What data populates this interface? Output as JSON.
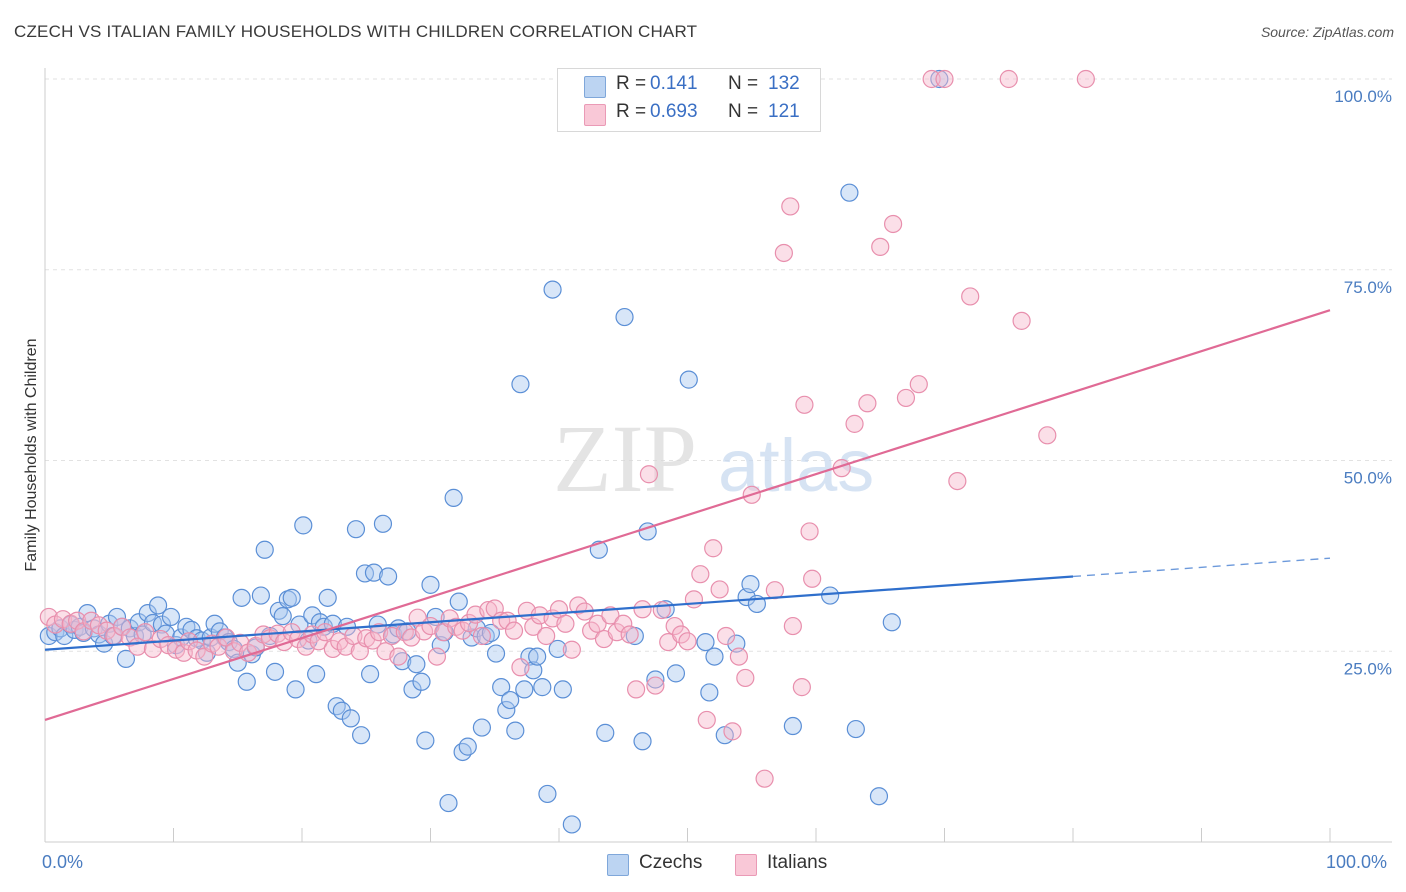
{
  "header": {
    "title": "CZECH VS ITALIAN FAMILY HOUSEHOLDS WITH CHILDREN CORRELATION CHART",
    "source": "Source: ZipAtlas.com"
  },
  "watermark": {
    "zip": "ZIP",
    "atlas": "atlas"
  },
  "legend": {
    "czechs": {
      "r_key": "R =",
      "r": "0.141",
      "n_key": "N =",
      "n": "132",
      "color": "#a9c8ef"
    },
    "italians": {
      "r_key": "R =",
      "r": "0.693",
      "n_key": "N =",
      "n": "121",
      "color": "#f6b8cb"
    }
  },
  "bottom_legend": {
    "czechs": "Czechs",
    "italians": "Italians"
  },
  "chart_data": {
    "type": "scatter",
    "title": "CZECH VS ITALIAN FAMILY HOUSEHOLDS WITH CHILDREN CORRELATION CHART",
    "xlabel": "",
    "ylabel": "Family Households with Children",
    "xlim": [
      0,
      100
    ],
    "ylim": [
      0,
      100
    ],
    "x_tick_labels": [
      "0.0%",
      "100.0%"
    ],
    "y_ticks": [
      25,
      50,
      75,
      100
    ],
    "y_tick_labels": [
      "25.0%",
      "50.0%",
      "75.0%",
      "100.0%"
    ],
    "grid": true,
    "series": [
      {
        "name": "Czechs",
        "color": "#5b8fd6",
        "fill": "#a9c8ef",
        "trend": {
          "x0": 0,
          "y0": 25.2,
          "x1": 80,
          "y1": 34.8,
          "dashed_to_x": 100,
          "dashed_to_y": 37.2,
          "color": "#2f6fcc"
        },
        "points": [
          [
            0.3,
            27
          ],
          [
            0.8,
            27.5
          ],
          [
            1.2,
            28
          ],
          [
            1.5,
            27
          ],
          [
            2,
            28.5
          ],
          [
            2.3,
            27.8
          ],
          [
            2.7,
            28.2
          ],
          [
            3,
            27.4
          ],
          [
            3.3,
            30
          ],
          [
            3.8,
            28
          ],
          [
            4.2,
            27.2
          ],
          [
            4.6,
            26
          ],
          [
            5,
            28.6
          ],
          [
            5.3,
            27
          ],
          [
            5.6,
            29.5
          ],
          [
            6,
            28.2
          ],
          [
            6.3,
            24
          ],
          [
            6.6,
            28
          ],
          [
            7,
            27
          ],
          [
            7.3,
            28.8
          ],
          [
            7.6,
            27.2
          ],
          [
            8,
            30
          ],
          [
            8.4,
            28.7
          ],
          [
            8.8,
            31
          ],
          [
            9.1,
            28.5
          ],
          [
            9.4,
            27.3
          ],
          [
            9.8,
            29.5
          ],
          [
            10.2,
            25.8
          ],
          [
            10.6,
            26.8
          ],
          [
            11,
            28.2
          ],
          [
            11.4,
            27.8
          ],
          [
            11.8,
            26.7
          ],
          [
            12.2,
            26.4
          ],
          [
            12.6,
            24.8
          ],
          [
            12.9,
            26.8
          ],
          [
            13.2,
            28.6
          ],
          [
            13.6,
            27.6
          ],
          [
            14,
            26.8
          ],
          [
            14.3,
            26.2
          ],
          [
            14.7,
            25.3
          ],
          [
            15,
            23.5
          ],
          [
            15.3,
            32
          ],
          [
            15.7,
            21
          ],
          [
            16.1,
            24.6
          ],
          [
            16.4,
            25.5
          ],
          [
            16.8,
            32.3
          ],
          [
            17.1,
            38.3
          ],
          [
            17.5,
            27
          ],
          [
            17.9,
            22.3
          ],
          [
            18.2,
            30.3
          ],
          [
            18.5,
            29.6
          ],
          [
            18.9,
            31.8
          ],
          [
            19.2,
            32
          ],
          [
            19.5,
            20
          ],
          [
            19.8,
            28.5
          ],
          [
            20.1,
            41.5
          ],
          [
            20.5,
            26.4
          ],
          [
            20.8,
            29.7
          ],
          [
            21.1,
            22
          ],
          [
            21.4,
            28.8
          ],
          [
            21.7,
            28.2
          ],
          [
            22,
            32
          ],
          [
            22.4,
            28.6
          ],
          [
            22.7,
            17.8
          ],
          [
            23.1,
            17.2
          ],
          [
            23.5,
            28.2
          ],
          [
            23.8,
            16.2
          ],
          [
            24.2,
            41
          ],
          [
            24.6,
            14
          ],
          [
            24.9,
            35.2
          ],
          [
            25.3,
            22
          ],
          [
            25.6,
            35.3
          ],
          [
            25.9,
            28.5
          ],
          [
            26.3,
            41.7
          ],
          [
            26.7,
            34.8
          ],
          [
            27.1,
            27.2
          ],
          [
            27.5,
            28
          ],
          [
            27.8,
            23.7
          ],
          [
            28.2,
            27.6
          ],
          [
            28.6,
            20
          ],
          [
            28.9,
            23.3
          ],
          [
            29.3,
            21
          ],
          [
            29.6,
            13.3
          ],
          [
            30,
            33.7
          ],
          [
            30.4,
            29.5
          ],
          [
            30.8,
            25.8
          ],
          [
            31.1,
            27.5
          ],
          [
            31.4,
            5.1
          ],
          [
            31.8,
            45.1
          ],
          [
            32.2,
            31.5
          ],
          [
            32.5,
            11.8
          ],
          [
            32.9,
            12.5
          ],
          [
            33.2,
            26.8
          ],
          [
            33.6,
            28
          ],
          [
            34,
            15
          ],
          [
            34.3,
            27
          ],
          [
            34.7,
            27.4
          ],
          [
            35.1,
            24.7
          ],
          [
            35.5,
            20.3
          ],
          [
            35.9,
            17.3
          ],
          [
            36.2,
            18.6
          ],
          [
            36.6,
            14.6
          ],
          [
            37,
            60
          ],
          [
            37.3,
            20
          ],
          [
            37.7,
            24.3
          ],
          [
            38,
            22.5
          ],
          [
            38.3,
            24.3
          ],
          [
            38.7,
            20.3
          ],
          [
            39.1,
            6.3
          ],
          [
            39.5,
            72.4
          ],
          [
            39.9,
            25.3
          ],
          [
            40.3,
            20
          ],
          [
            41,
            2.3
          ],
          [
            43.1,
            38.3
          ],
          [
            43.6,
            14.3
          ],
          [
            45.1,
            68.8
          ],
          [
            45.9,
            27
          ],
          [
            46.5,
            13.2
          ],
          [
            46.9,
            40.7
          ],
          [
            47.5,
            21.3
          ],
          [
            48.3,
            30.5
          ],
          [
            49.1,
            22.1
          ],
          [
            50.1,
            60.6
          ],
          [
            51.4,
            26.2
          ],
          [
            51.7,
            19.6
          ],
          [
            52.1,
            24.3
          ],
          [
            52.9,
            14
          ],
          [
            53.8,
            26
          ],
          [
            54.6,
            32.1
          ],
          [
            54.9,
            33.8
          ],
          [
            55.4,
            31.2
          ],
          [
            58.2,
            15.2
          ],
          [
            61.1,
            32.3
          ],
          [
            62.6,
            85.1
          ],
          [
            63.1,
            14.8
          ],
          [
            64.9,
            6
          ],
          [
            65.9,
            28.8
          ],
          [
            69.6,
            100
          ]
        ]
      },
      {
        "name": "Italians",
        "color": "#e88fad",
        "fill": "#f6b8cb",
        "trend": {
          "x0": 0,
          "y0": 16,
          "x1": 100,
          "y1": 69.7,
          "color": "#e06a95"
        },
        "points": [
          [
            0.3,
            29.5
          ],
          [
            0.8,
            28.5
          ],
          [
            1.4,
            29.2
          ],
          [
            2,
            28.6
          ],
          [
            2.5,
            29
          ],
          [
            3,
            27.6
          ],
          [
            3.6,
            29
          ],
          [
            4.2,
            28.4
          ],
          [
            4.8,
            27.7
          ],
          [
            5.4,
            27
          ],
          [
            6,
            28.2
          ],
          [
            6.6,
            26.8
          ],
          [
            7.2,
            25.6
          ],
          [
            7.8,
            27.5
          ],
          [
            8.4,
            25.3
          ],
          [
            9,
            26.6
          ],
          [
            9.6,
            25.8
          ],
          [
            10.2,
            25.2
          ],
          [
            10.8,
            24.8
          ],
          [
            11.2,
            26.3
          ],
          [
            11.8,
            25.1
          ],
          [
            12.4,
            24.3
          ],
          [
            13,
            26
          ],
          [
            13.5,
            25.6
          ],
          [
            14.1,
            26.8
          ],
          [
            14.7,
            25
          ],
          [
            15.2,
            26.1
          ],
          [
            15.8,
            24.8
          ],
          [
            16.4,
            25.7
          ],
          [
            17,
            27.2
          ],
          [
            17.5,
            26.7
          ],
          [
            18.1,
            27.3
          ],
          [
            18.6,
            26.2
          ],
          [
            19.2,
            27.5
          ],
          [
            19.7,
            26.6
          ],
          [
            20.3,
            25.6
          ],
          [
            20.8,
            27.2
          ],
          [
            21.3,
            26.3
          ],
          [
            21.8,
            27.5
          ],
          [
            22.4,
            25.3
          ],
          [
            22.9,
            26.3
          ],
          [
            23.4,
            25.6
          ],
          [
            24,
            27
          ],
          [
            24.5,
            25
          ],
          [
            25,
            26.7
          ],
          [
            25.5,
            26.4
          ],
          [
            26,
            27.5
          ],
          [
            26.5,
            25
          ],
          [
            27,
            27
          ],
          [
            27.5,
            24.3
          ],
          [
            28,
            27.5
          ],
          [
            28.5,
            26.8
          ],
          [
            29,
            29.4
          ],
          [
            29.5,
            27.6
          ],
          [
            30,
            28.3
          ],
          [
            30.5,
            24.3
          ],
          [
            31,
            27.5
          ],
          [
            31.5,
            29.3
          ],
          [
            32,
            28.2
          ],
          [
            32.5,
            27.7
          ],
          [
            33,
            28.7
          ],
          [
            33.5,
            29.8
          ],
          [
            34,
            27
          ],
          [
            34.5,
            30.4
          ],
          [
            35,
            30.6
          ],
          [
            35.5,
            29
          ],
          [
            36,
            29
          ],
          [
            36.5,
            27.7
          ],
          [
            37,
            22.9
          ],
          [
            37.5,
            30.3
          ],
          [
            38,
            28.2
          ],
          [
            38.5,
            29.7
          ],
          [
            39,
            27
          ],
          [
            39.5,
            29.3
          ],
          [
            40,
            30.5
          ],
          [
            40.5,
            28.6
          ],
          [
            41,
            25.2
          ],
          [
            41.5,
            31
          ],
          [
            42,
            30.2
          ],
          [
            42.5,
            27.7
          ],
          [
            43,
            28.6
          ],
          [
            43.5,
            26.6
          ],
          [
            44,
            29.7
          ],
          [
            44.5,
            27.5
          ],
          [
            45,
            28.6
          ],
          [
            45.5,
            27.2
          ],
          [
            46,
            20
          ],
          [
            46.5,
            30.5
          ],
          [
            47,
            48.2
          ],
          [
            47.5,
            20.5
          ],
          [
            48,
            30.4
          ],
          [
            48.5,
            26.2
          ],
          [
            49,
            28.3
          ],
          [
            49.5,
            27.2
          ],
          [
            50,
            26.3
          ],
          [
            50.5,
            31.8
          ],
          [
            51,
            35.1
          ],
          [
            51.5,
            16
          ],
          [
            52,
            38.5
          ],
          [
            52.5,
            33.1
          ],
          [
            53,
            27
          ],
          [
            53.5,
            14.5
          ],
          [
            54,
            24.3
          ],
          [
            54.5,
            21.5
          ],
          [
            55,
            45.5
          ],
          [
            56,
            8.3
          ],
          [
            56.8,
            33
          ],
          [
            57.5,
            77.2
          ],
          [
            58,
            83.3
          ],
          [
            58.2,
            28.3
          ],
          [
            58.9,
            20.3
          ],
          [
            59.1,
            57.3
          ],
          [
            59.5,
            40.7
          ],
          [
            59.7,
            34.5
          ],
          [
            62,
            49
          ],
          [
            63,
            54.8
          ],
          [
            64,
            57.5
          ],
          [
            65,
            78
          ],
          [
            66,
            81
          ],
          [
            67,
            58.2
          ],
          [
            68,
            60
          ],
          [
            69,
            100
          ],
          [
            70,
            100
          ],
          [
            71,
            47.3
          ],
          [
            72,
            71.5
          ],
          [
            75,
            100
          ],
          [
            76,
            68.3
          ],
          [
            78,
            53.3
          ],
          [
            81,
            100
          ]
        ]
      }
    ]
  }
}
